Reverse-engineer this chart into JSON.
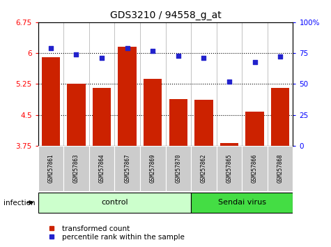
{
  "title": "GDS3210 / 94558_g_at",
  "samples": [
    "GSM257861",
    "GSM257863",
    "GSM257864",
    "GSM257867",
    "GSM257869",
    "GSM257870",
    "GSM257862",
    "GSM257865",
    "GSM257866",
    "GSM257868"
  ],
  "bar_values": [
    5.9,
    5.25,
    5.15,
    6.15,
    5.38,
    4.88,
    4.87,
    3.82,
    4.57,
    5.15
  ],
  "dot_values": [
    79,
    74,
    71,
    79,
    77,
    73,
    71,
    52,
    68,
    72
  ],
  "bar_color": "#cc2200",
  "dot_color": "#2222cc",
  "ylim_left": [
    3.75,
    6.75
  ],
  "ylim_right": [
    0,
    100
  ],
  "yticks_left": [
    3.75,
    4.5,
    5.25,
    6.0,
    6.75
  ],
  "yticks_right": [
    0,
    25,
    50,
    75,
    100
  ],
  "ytick_labels_left": [
    "3.75",
    "4.5",
    "5.25",
    "6",
    "6.75"
  ],
  "ytick_labels_right": [
    "0",
    "25",
    "50",
    "75",
    "100%"
  ],
  "hlines": [
    6.0,
    5.25,
    4.5
  ],
  "groups": [
    {
      "label": "control",
      "indices": [
        0,
        1,
        2,
        3,
        4,
        5
      ],
      "color": "#ccffcc"
    },
    {
      "label": "Sendai virus",
      "indices": [
        6,
        7,
        8,
        9
      ],
      "color": "#44dd44"
    }
  ],
  "infection_label": "infection",
  "legend_bar_label": "transformed count",
  "legend_dot_label": "percentile rank within the sample",
  "cell_bg_color": "#cccccc"
}
